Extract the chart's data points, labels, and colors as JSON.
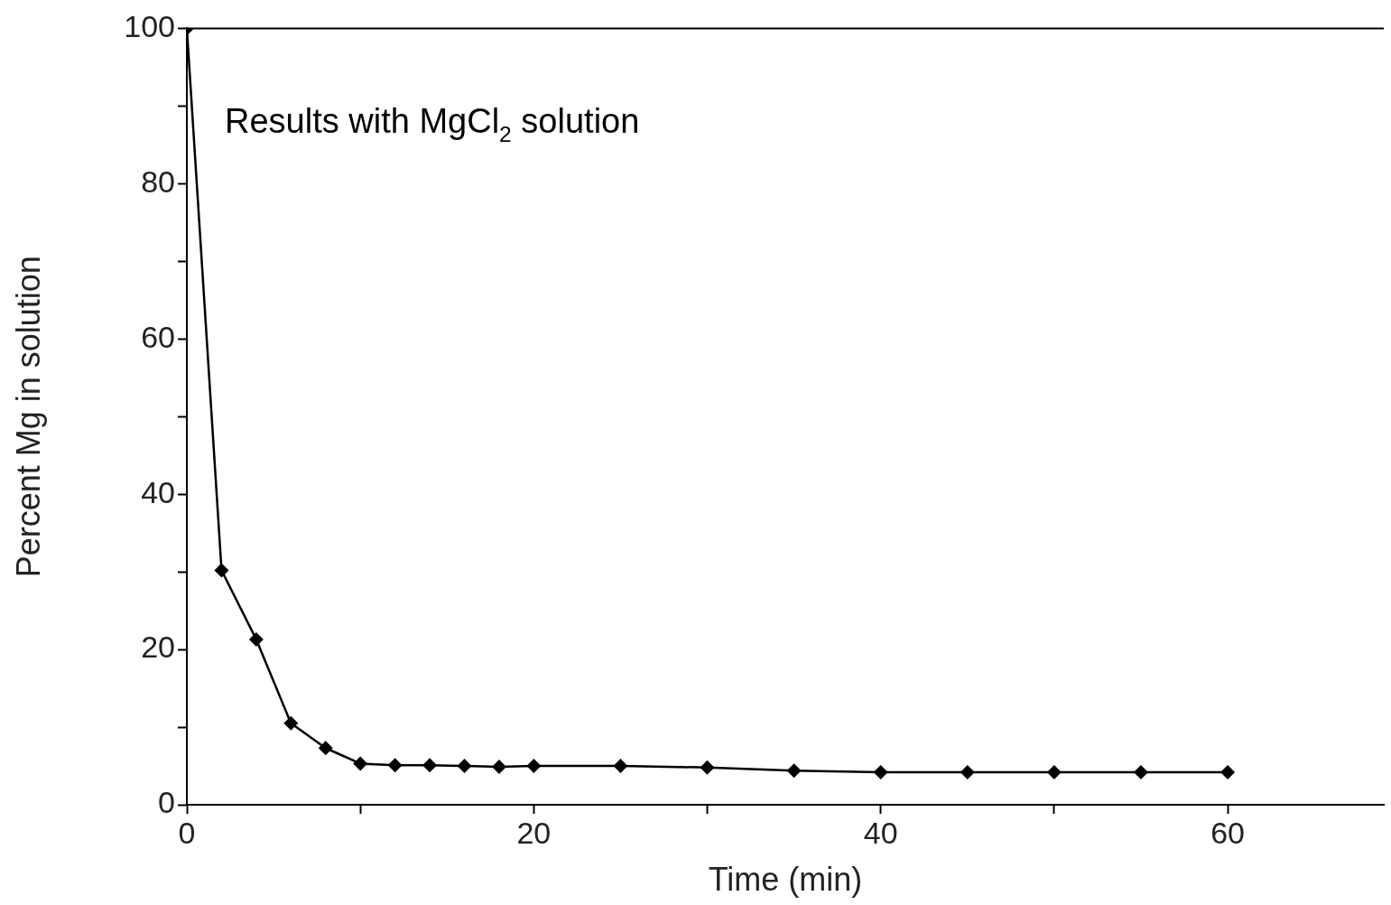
{
  "chart_data": {
    "type": "line",
    "xlabel": "Time (min)",
    "ylabel": "Percent Mg in solution",
    "annotations": [
      "Results with MgCl$_{2}$ solution"
    ],
    "x": [
      0,
      2,
      4,
      6,
      8,
      10,
      12,
      14,
      16,
      18,
      20,
      25,
      30,
      35,
      40,
      45,
      50,
      55,
      60
    ],
    "series": [
      {
        "color": "#000000",
        "values": [
          100,
          30.2,
          21.3,
          10.5,
          7.3,
          5.3,
          5.1,
          5.1,
          5.0,
          4.9,
          5.0,
          5.0,
          4.8,
          4.4,
          4.2,
          4.2,
          4.2,
          4.2,
          4.2
        ]
      }
    ],
    "xlim": [
      0,
      69
    ],
    "xticks": [
      0,
      {
        "value": 10,
        "label": null
      },
      20,
      {
        "value": 30,
        "label": null
      },
      40,
      {
        "value": 50,
        "label": null
      },
      60
    ],
    "ylim": [
      0,
      100
    ],
    "yticks": [
      0,
      {
        "value": 10,
        "label": null
      },
      20,
      {
        "value": 30,
        "label": null
      },
      40,
      {
        "value": 50,
        "label": null
      },
      60,
      {
        "value": 70,
        "label": null
      },
      80,
      {
        "value": 90,
        "label": null
      },
      100
    ],
    "ref_lines": [
      {
        "axis": "y",
        "value": 100,
        "label": null,
        "color": "#000000"
      }
    ],
    "grid": false,
    "legend": false,
    "marker": "diamond",
    "line_style": "solid"
  }
}
